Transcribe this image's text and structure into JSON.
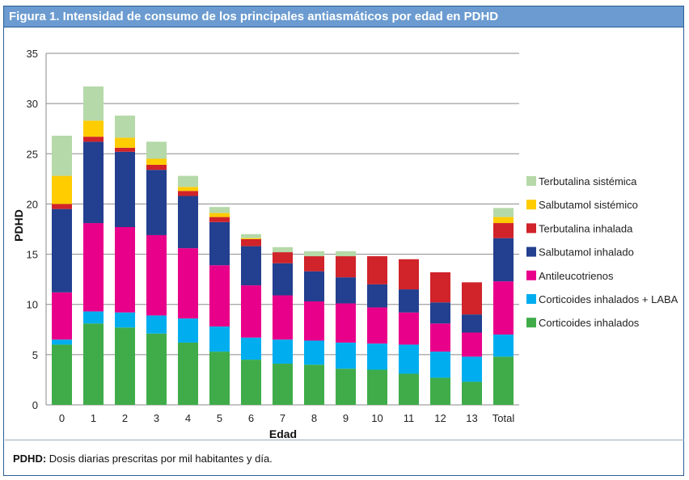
{
  "figure": {
    "title": "Figura 1. Intensidad de consumo de los principales antiasmáticos por edad en PDHD",
    "footnote_term": "PDHD:",
    "footnote_text": " Dosis diarias prescritas por mil habitantes y día."
  },
  "chart_data": {
    "type": "bar",
    "stacked": true,
    "xlabel": "Edad",
    "ylabel": "PDHD",
    "ylim": [
      0,
      35
    ],
    "yticks": [
      0,
      5,
      10,
      15,
      20,
      25,
      30,
      35
    ],
    "grid": true,
    "legend_position": "right",
    "categories": [
      "0",
      "1",
      "2",
      "3",
      "4",
      "5",
      "6",
      "7",
      "8",
      "9",
      "10",
      "11",
      "12",
      "13",
      "Total"
    ],
    "series": [
      {
        "name": "Corticoides inhalados",
        "color": "#3fac49",
        "values": [
          6.0,
          8.1,
          7.7,
          7.1,
          6.2,
          5.3,
          4.5,
          4.1,
          4.0,
          3.6,
          3.5,
          3.1,
          2.7,
          2.3,
          4.8
        ]
      },
      {
        "name": "Corticoides inhalados + LABA",
        "color": "#00aeef",
        "values": [
          0.5,
          1.2,
          1.5,
          1.8,
          2.4,
          2.5,
          2.2,
          2.4,
          2.4,
          2.6,
          2.6,
          2.9,
          2.6,
          2.5,
          2.2
        ]
      },
      {
        "name": "Antileucotrienos",
        "color": "#e8008a",
        "values": [
          4.7,
          8.8,
          8.5,
          8.0,
          7.0,
          6.1,
          5.2,
          4.4,
          3.9,
          3.9,
          3.6,
          3.2,
          2.8,
          2.4,
          5.3
        ]
      },
      {
        "name": "Salbutamol inhalado",
        "color": "#233f8f",
        "values": [
          8.3,
          8.1,
          7.5,
          6.5,
          5.2,
          4.3,
          3.9,
          3.2,
          3.0,
          2.6,
          2.3,
          2.3,
          2.1,
          1.8,
          4.3
        ]
      },
      {
        "name": "Terbutalina inhalada",
        "color": "#d0232a",
        "values": [
          0.5,
          0.5,
          0.4,
          0.5,
          0.5,
          0.5,
          0.7,
          1.1,
          1.5,
          2.1,
          2.8,
          3.0,
          3.0,
          3.2,
          1.5
        ]
      },
      {
        "name": "Salbutamol sistémico",
        "color": "#ffcc00",
        "values": [
          2.8,
          1.6,
          1.0,
          0.6,
          0.4,
          0.4,
          0.1,
          0,
          0,
          0,
          0,
          0,
          0,
          0,
          0.6
        ]
      },
      {
        "name": "Terbutalina sistémica",
        "color": "#b5d9a8",
        "values": [
          4.0,
          3.4,
          2.2,
          1.7,
          1.1,
          0.6,
          0.4,
          0.5,
          0.5,
          0.5,
          0,
          0,
          0,
          0,
          0.9
        ]
      }
    ]
  }
}
